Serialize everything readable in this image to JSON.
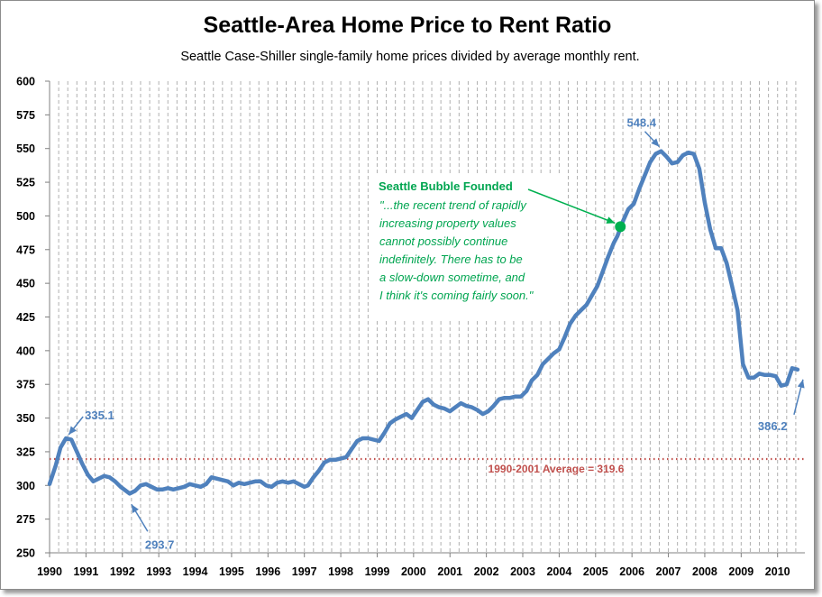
{
  "chart_data": {
    "type": "line",
    "title": "Seattle-Area Home Price to Rent Ratio",
    "subtitle": "Seattle Case-Shiller single-family home prices divided by average monthly rent.",
    "xlabel": "",
    "ylabel": "",
    "ylim": [
      250,
      600
    ],
    "xlim": [
      1990,
      2010.75
    ],
    "yticks": [
      250,
      275,
      300,
      325,
      350,
      375,
      400,
      425,
      450,
      475,
      500,
      525,
      550,
      575,
      600
    ],
    "xtick_labels": [
      "1990",
      "1991",
      "1992",
      "1993",
      "1994",
      "1995",
      "1996",
      "1997",
      "1998",
      "1999",
      "2000",
      "2001",
      "2002",
      "2003",
      "2004",
      "2005",
      "2006",
      "2007",
      "2008",
      "2009",
      "2010"
    ],
    "grid": "vertical dashed quarterly",
    "series": [
      {
        "color": "#4f81bd",
        "x": [
          1990.0,
          1990.17,
          1990.3,
          1990.45,
          1990.6,
          1990.75,
          1990.9,
          1991.05,
          1991.2,
          1991.35,
          1991.5,
          1991.65,
          1991.8,
          1991.95,
          1992.1,
          1992.2,
          1992.35,
          1992.5,
          1992.65,
          1992.8,
          1992.95,
          1993.1,
          1993.25,
          1993.4,
          1993.55,
          1993.7,
          1993.85,
          1994.0,
          1994.15,
          1994.3,
          1994.45,
          1994.6,
          1994.75,
          1994.9,
          1995.05,
          1995.2,
          1995.35,
          1995.5,
          1995.65,
          1995.8,
          1995.95,
          1996.1,
          1996.25,
          1996.4,
          1996.55,
          1996.7,
          1996.85,
          1997.0,
          1997.1,
          1997.25,
          1997.4,
          1997.55,
          1997.7,
          1997.85,
          1998.0,
          1998.15,
          1998.3,
          1998.45,
          1998.6,
          1998.75,
          1998.9,
          1999.05,
          1999.2,
          1999.35,
          1999.5,
          1999.65,
          1999.8,
          1999.95,
          2000.1,
          2000.25,
          2000.4,
          2000.55,
          2000.7,
          2000.85,
          2001.0,
          2001.15,
          2001.3,
          2001.45,
          2001.6,
          2001.75,
          2001.9,
          2002.05,
          2002.2,
          2002.35,
          2002.5,
          2002.65,
          2002.8,
          2002.95,
          2003.1,
          2003.25,
          2003.4,
          2003.55,
          2003.7,
          2003.85,
          2004.0,
          2004.15,
          2004.3,
          2004.45,
          2004.6,
          2004.75,
          2004.9,
          2005.05,
          2005.2,
          2005.35,
          2005.5,
          2005.6,
          2005.75,
          2005.9,
          2006.05,
          2006.2,
          2006.35,
          2006.5,
          2006.65,
          2006.8,
          2006.95,
          2007.1,
          2007.25,
          2007.4,
          2007.55,
          2007.7,
          2007.85,
          2008.0,
          2008.15,
          2008.3,
          2008.45,
          2008.6,
          2008.75,
          2008.9,
          2009.05,
          2009.2,
          2009.35,
          2009.5,
          2009.65,
          2009.8,
          2009.95,
          2010.1,
          2010.25,
          2010.4,
          2010.55
        ],
        "y": [
          301,
          315,
          328,
          335,
          334,
          325,
          316,
          308,
          303,
          305,
          307,
          306,
          303,
          299,
          296,
          294,
          296,
          300,
          301,
          299,
          297,
          297,
          298,
          297,
          298,
          299,
          301,
          300,
          299,
          301,
          306,
          305,
          304,
          303,
          300,
          302,
          301,
          302,
          303,
          303,
          300,
          299,
          302,
          303,
          302,
          303,
          301,
          299,
          300,
          306,
          311,
          317,
          319,
          319,
          320,
          321,
          327,
          333,
          335,
          335,
          334,
          333,
          339,
          346,
          349,
          351,
          353,
          350,
          356,
          362,
          364,
          360,
          358,
          357,
          355,
          358,
          361,
          359,
          358,
          356,
          353,
          355,
          359,
          364,
          365,
          365,
          366,
          366,
          370,
          378,
          382,
          390,
          394,
          398,
          401,
          410,
          420,
          426,
          430,
          434,
          441,
          448,
          459,
          470,
          480,
          485,
          496,
          505,
          509,
          520,
          530,
          540,
          546,
          548,
          544,
          539,
          540,
          545,
          547,
          546,
          535,
          510,
          490,
          476,
          476,
          465,
          448,
          430,
          390,
          380,
          380,
          383,
          382,
          382,
          381,
          374,
          375,
          387,
          386
        ]
      }
    ],
    "annotations": {
      "peak_1990": {
        "value": "335.1",
        "x": 1990.45,
        "y": 335
      },
      "trough_1992": {
        "value": "293.7",
        "x": 1992.2,
        "y": 294
      },
      "peak_2006": {
        "value": "548.4",
        "x": 2006.8,
        "y": 548
      },
      "latest_2010": {
        "value": "386.2",
        "x": 2010.55,
        "y": 386
      },
      "average": {
        "label": "1990-2001 Average = 319.6",
        "value": 319.6,
        "color": "#c0504d"
      },
      "bubble_marker": {
        "x": 2005.68,
        "y": 492,
        "color": "#00b050"
      },
      "bubble_callout": {
        "heading": "Seattle Bubble Founded",
        "lines": [
          "\"...the recent trend of rapidly",
          "increasing property values",
          "cannot possibly continue",
          "indefinitely.  There has to be",
          "a slow-down sometime, and",
          "I think it's coming fairly soon.\""
        ]
      }
    }
  }
}
